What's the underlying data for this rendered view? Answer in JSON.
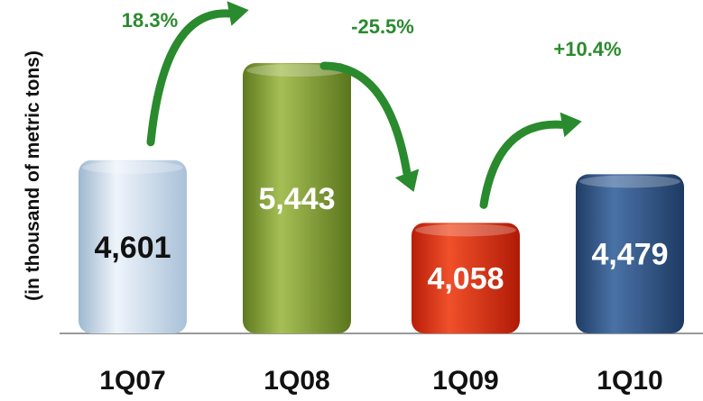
{
  "chart_data": {
    "type": "bar",
    "categories": [
      "1Q07",
      "1Q08",
      "1Q09",
      "1Q10"
    ],
    "values": [
      4601,
      5443,
      4058,
      4479
    ],
    "value_labels": [
      "4,601",
      "5,443",
      "4,058",
      "4,479"
    ],
    "ylabel": "(in thousand of metric tons)",
    "title": "",
    "changes": [
      "18.3%",
      "-25.5%",
      "+10.4%"
    ],
    "change_directions": [
      "up",
      "down",
      "up"
    ],
    "bar_colors": [
      "#c9dcec",
      "#7f9a32",
      "#d92c12",
      "#2e5485"
    ],
    "label_colors": [
      "#111111",
      "#ffffff",
      "#ffffff",
      "#ffffff"
    ],
    "change_color": "#2a8a2e",
    "grid": false,
    "legend": "none"
  }
}
